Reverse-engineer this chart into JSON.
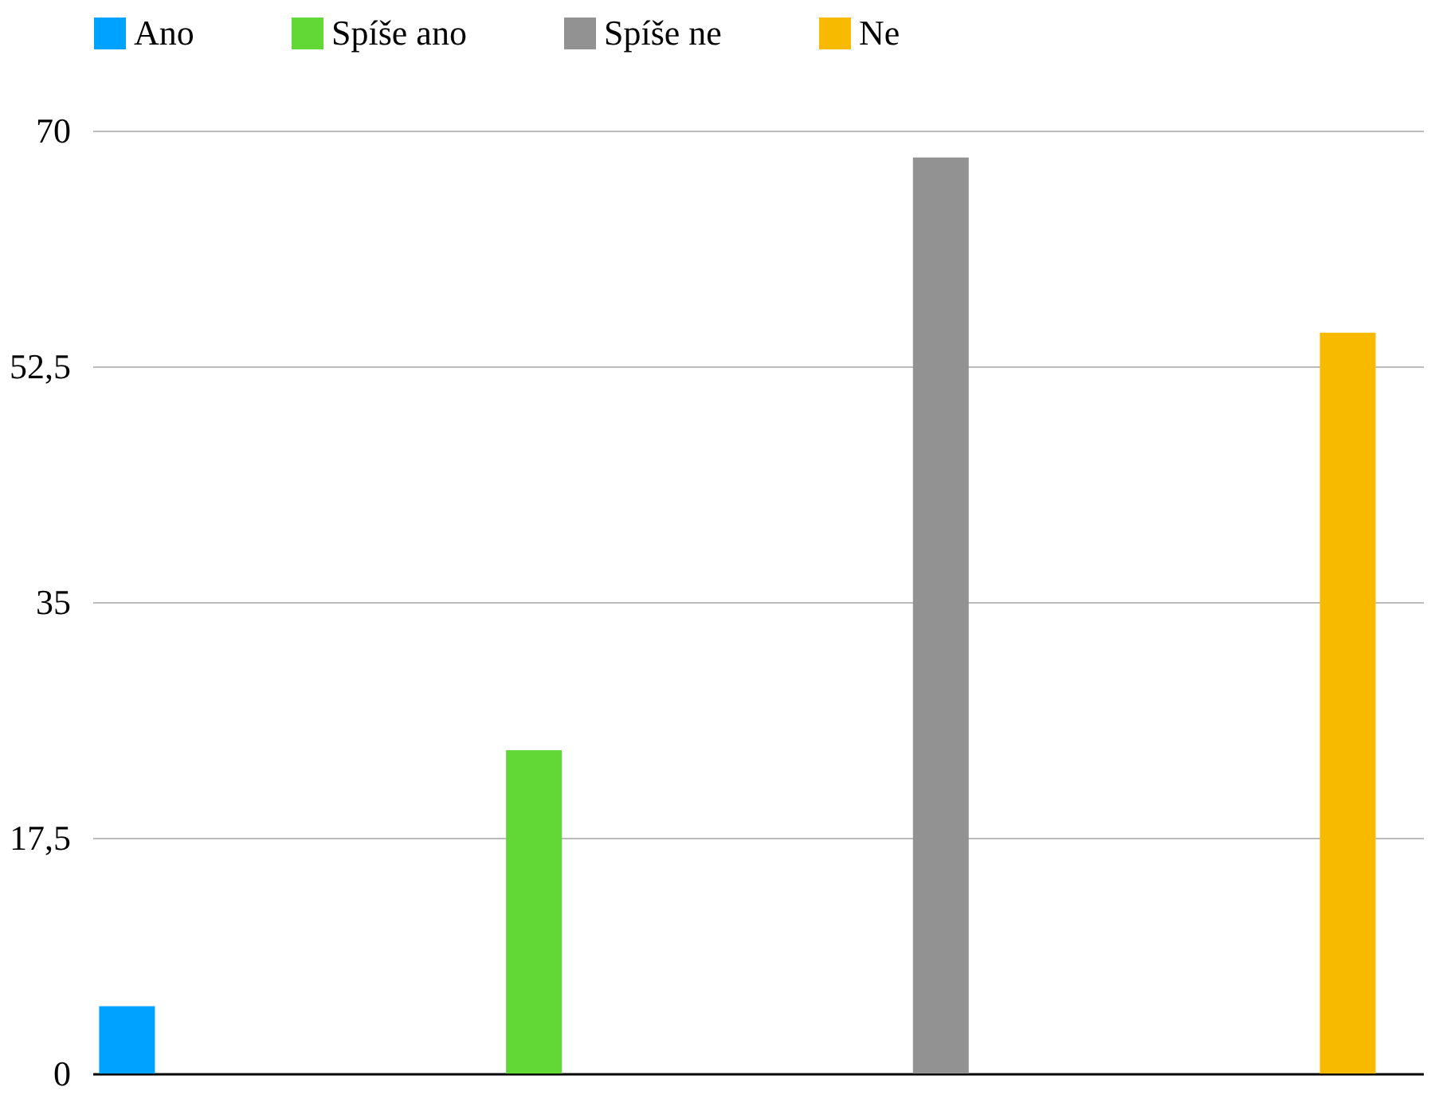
{
  "chart_data": {
    "type": "bar",
    "categories": [
      null
    ],
    "series": [
      {
        "name": "Ano",
        "color": "#00a2ff",
        "values": [
          5
        ]
      },
      {
        "name": "Spíše ano",
        "color": "#61d836",
        "values": [
          24
        ]
      },
      {
        "name": "Spíše ne",
        "color": "#929292",
        "values": [
          68
        ]
      },
      {
        "name": "Ne",
        "color": "#f8ba00",
        "values": [
          55
        ]
      }
    ],
    "ylim": [
      0,
      70
    ],
    "yticks": [
      0,
      {
        "value": 17.5,
        "label": "17,5"
      },
      35,
      {
        "value": 52.5,
        "label": "52,5"
      },
      70
    ],
    "grid": "y",
    "legend": "top"
  }
}
